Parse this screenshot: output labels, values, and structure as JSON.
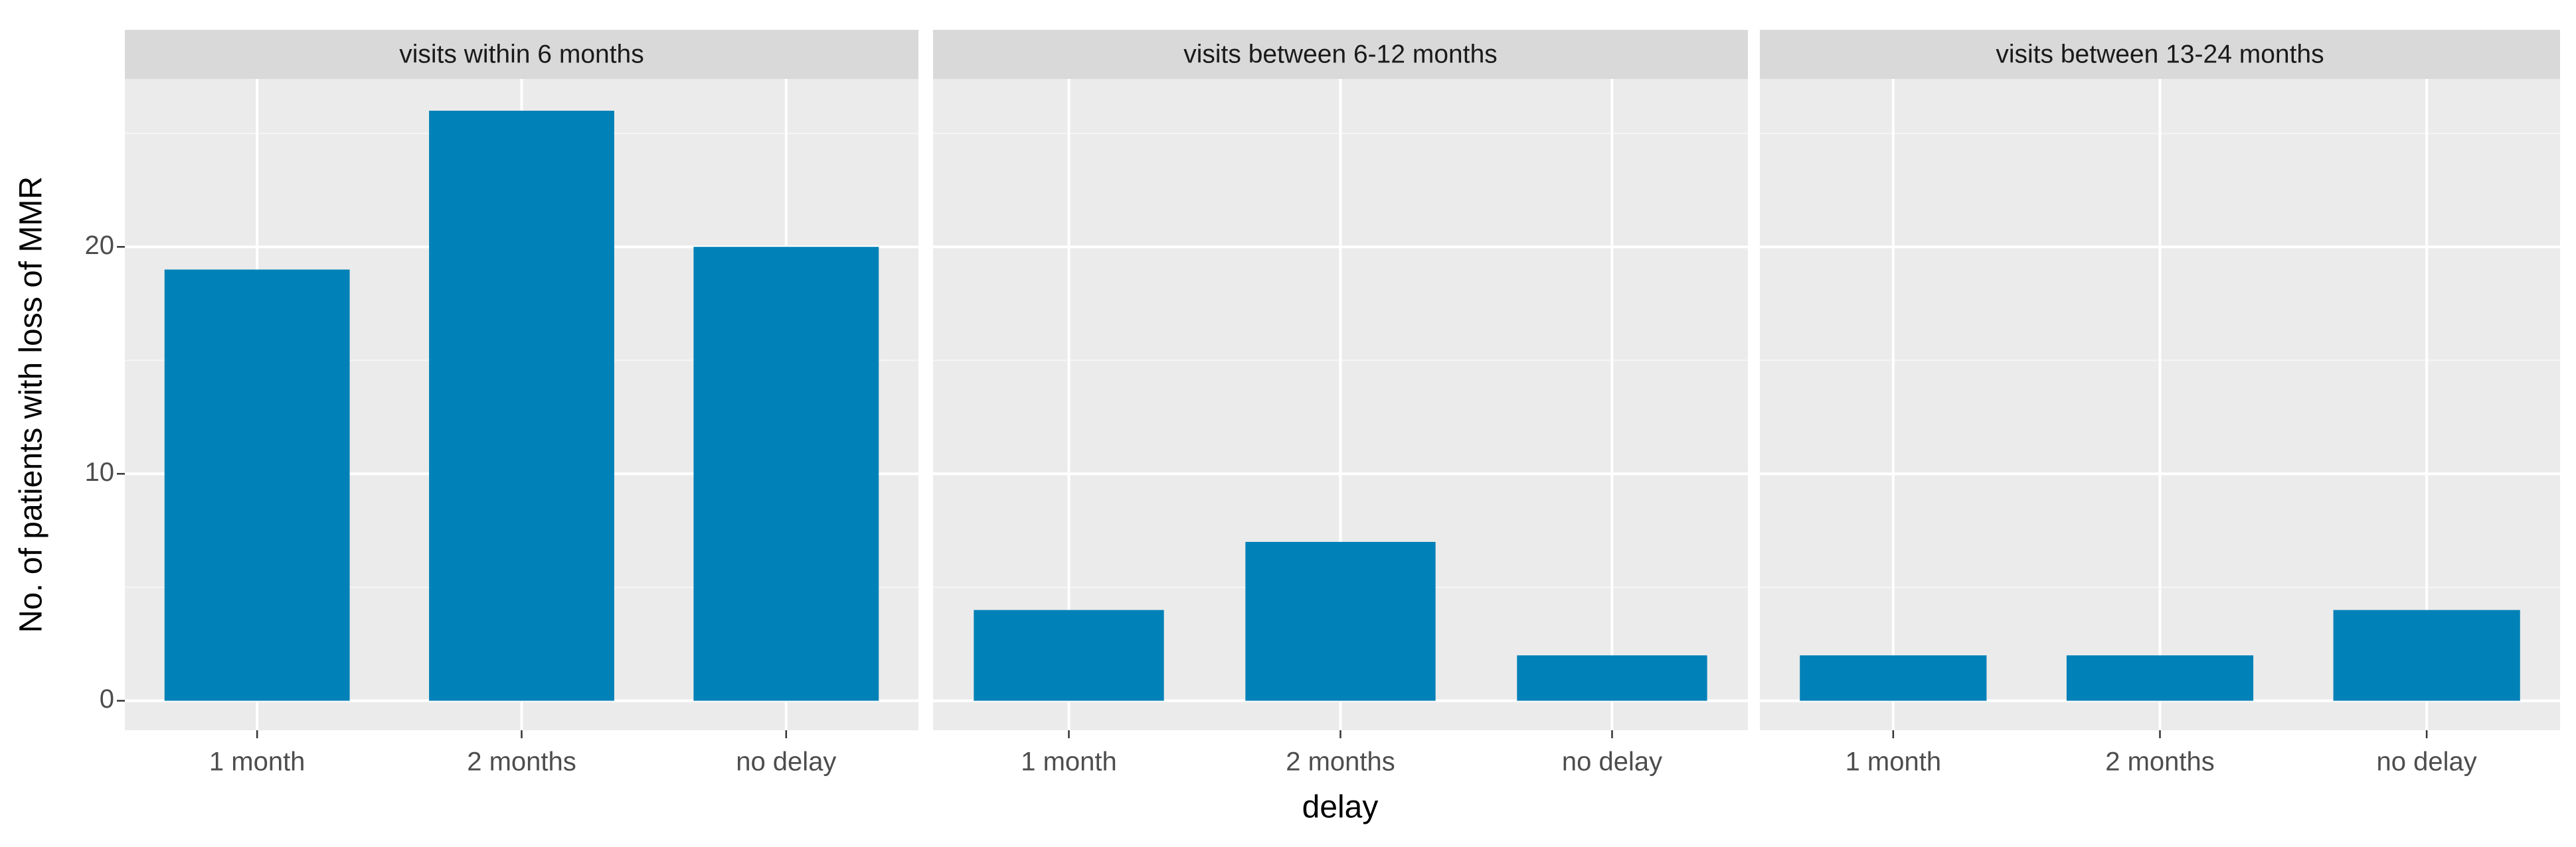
{
  "chart_data": {
    "type": "bar",
    "ylabel": "No. of patients with loss of MMR",
    "xlabel": "delay",
    "color": "#0081b7",
    "ylim": [
      -1.3,
      27.4
    ],
    "yticks": [
      0,
      10,
      20
    ],
    "minor_yticks": [
      5,
      15,
      25
    ],
    "grid": true,
    "facets": [
      {
        "title": "visits within 6 months",
        "categories": [
          "1 month",
          "2 months",
          "no delay"
        ],
        "values": [
          19,
          26,
          20
        ]
      },
      {
        "title": "visits between 6-12 months",
        "categories": [
          "1 month",
          "2 months",
          "no delay"
        ],
        "values": [
          4,
          7,
          2
        ]
      },
      {
        "title": "visits between 13-24 months",
        "categories": [
          "1 month",
          "2 months",
          "no delay"
        ],
        "values": [
          2,
          2,
          4
        ]
      }
    ]
  }
}
